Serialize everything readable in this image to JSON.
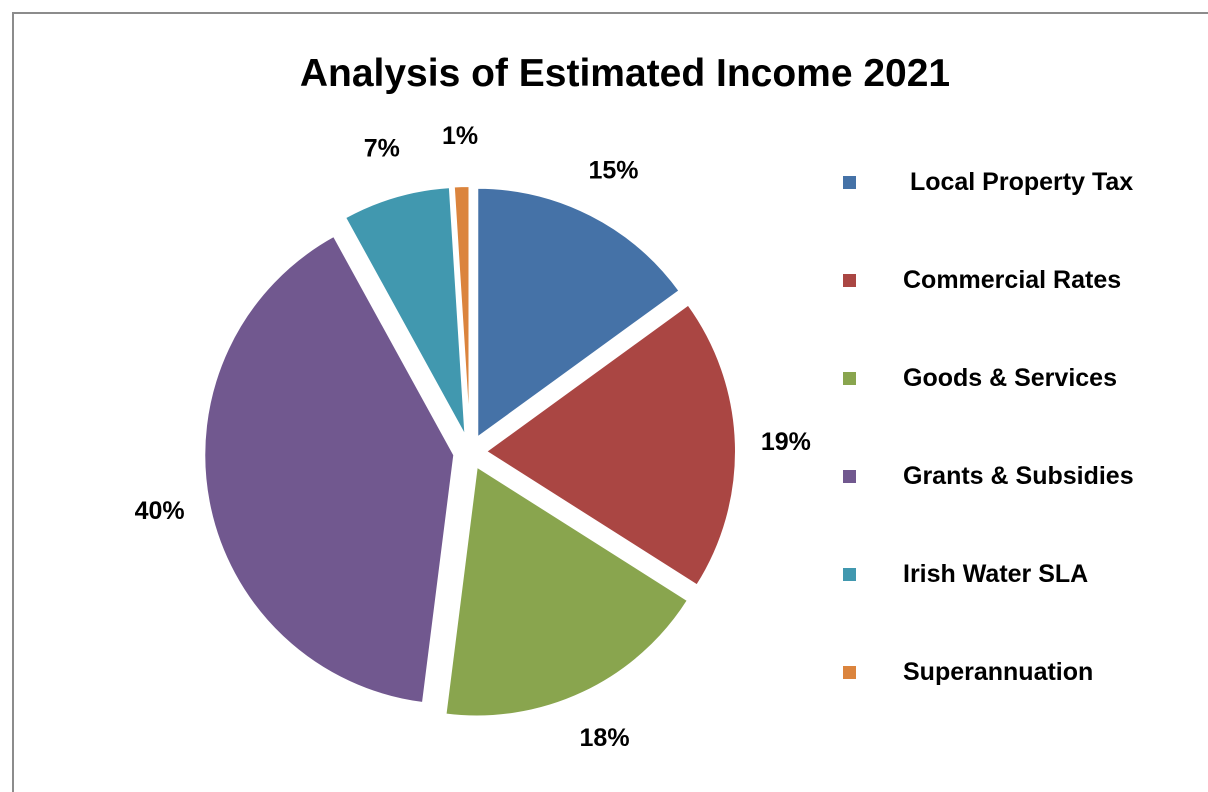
{
  "chart_data": {
    "type": "pie",
    "title": "Analysis of Estimated Income 2021",
    "exploded": true,
    "legend_position": "right",
    "slices": [
      {
        "name": " Local Property Tax",
        "value": 15,
        "label": "15%",
        "color": "#4572a7"
      },
      {
        "name": "Commercial Rates",
        "value": 19,
        "label": "19%",
        "color": "#aa4643"
      },
      {
        "name": "Goods & Services",
        "value": 18,
        "label": "18%",
        "color": "#89a54e"
      },
      {
        "name": "Grants & Subsidies",
        "value": 40,
        "label": "40%",
        "color": "#71588f"
      },
      {
        "name": "Irish Water SLA",
        "value": 7,
        "label": "7%",
        "color": "#4198af"
      },
      {
        "name": "Superannuation",
        "value": 1,
        "label": "1%",
        "color": "#db843d"
      }
    ]
  }
}
